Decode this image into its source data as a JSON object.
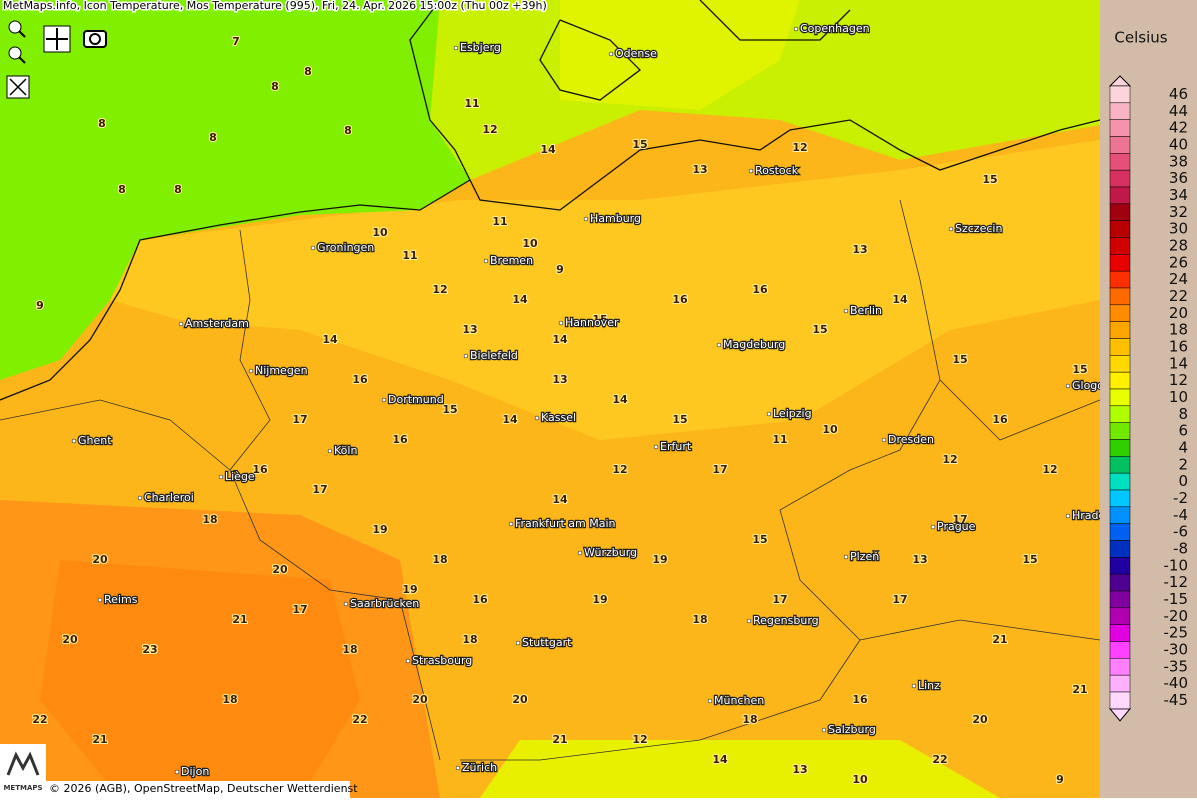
{
  "header": {
    "title": "MetMaps.info, Icon Temperature, Mos Temperature (995), Fri, 24. Apr. 2026 15:00z (Thu 00z +39h)"
  },
  "legend": {
    "unit": "Celsius",
    "labels": [
      46,
      44,
      42,
      40,
      38,
      36,
      34,
      32,
      30,
      28,
      26,
      24,
      22,
      20,
      18,
      16,
      14,
      12,
      10,
      8,
      6,
      4,
      2,
      0,
      -2,
      -4,
      -6,
      -8,
      -10,
      -12,
      -15,
      -20,
      -25,
      -30,
      -35,
      -40,
      -45
    ],
    "colors": [
      "#fcd4dc",
      "#f8b4c4",
      "#f494ac",
      "#ee7494",
      "#e65078",
      "#d83060",
      "#c01848",
      "#a00010",
      "#b80000",
      "#d00000",
      "#e80000",
      "#ff3000",
      "#ff6a00",
      "#ff8c00",
      "#ffa500",
      "#ffc000",
      "#ffd800",
      "#fff000",
      "#e8ff00",
      "#b0ff00",
      "#70e800",
      "#30d000",
      "#00c060",
      "#00e0c0",
      "#00c8ff",
      "#0090ff",
      "#0060f0",
      "#0030c0",
      "#2000a0",
      "#500090",
      "#8000a0",
      "#b000b0",
      "#e000e0",
      "#ff40ff",
      "#ff80ff",
      "#ffb0ff",
      "#ffd8ff"
    ]
  },
  "cities": [
    "Esbjerg",
    "Odense",
    "Copenhagen",
    "Rostock",
    "Hamburg",
    "Szczecin",
    "Groningen",
    "Bremen",
    "Amsterdam",
    "Berlin",
    "Hannover",
    "Magdeburg",
    "Bielefeld",
    "Nijmegen",
    "Glogow",
    "Dortmund",
    "Kassel",
    "Leipzig",
    "Ghent",
    "Dresden",
    "Köln",
    "Erfurt",
    "Liège",
    "Charleroi",
    "Frankfurt am Main",
    "Prague",
    "Hradec Králové",
    "Würzburg",
    "Plzeň",
    "Reims",
    "Saarbrücken",
    "Regensburg",
    "Stuttgart",
    "Strasbourg",
    "Linz",
    "München",
    "Salzburg",
    "Zürich",
    "Dijon"
  ],
  "stations": [
    7,
    8,
    8,
    8,
    8,
    8,
    8,
    8,
    9,
    11,
    12,
    14,
    15,
    13,
    12,
    11,
    10,
    9,
    10,
    11,
    12,
    13,
    14,
    14,
    15,
    16,
    16,
    15,
    13,
    14,
    15,
    16,
    15,
    15,
    14,
    16,
    17,
    16,
    15,
    14,
    13,
    14,
    15,
    17,
    16,
    18,
    17,
    19,
    18,
    16,
    14,
    12,
    11,
    10,
    12,
    12,
    17,
    20,
    20,
    18,
    18,
    17,
    18,
    19,
    18,
    20,
    21,
    23,
    21,
    20,
    22,
    21,
    22,
    20,
    19,
    19,
    18,
    17,
    15,
    17,
    21,
    21,
    20,
    22,
    18,
    12,
    14,
    13,
    16,
    13,
    15,
    9,
    10
  ],
  "footer": {
    "copyright": "© 2026 (AGB), OpenStreetMap, Deutscher Wetterdienst"
  },
  "logo": {
    "text": "METMAPS"
  }
}
